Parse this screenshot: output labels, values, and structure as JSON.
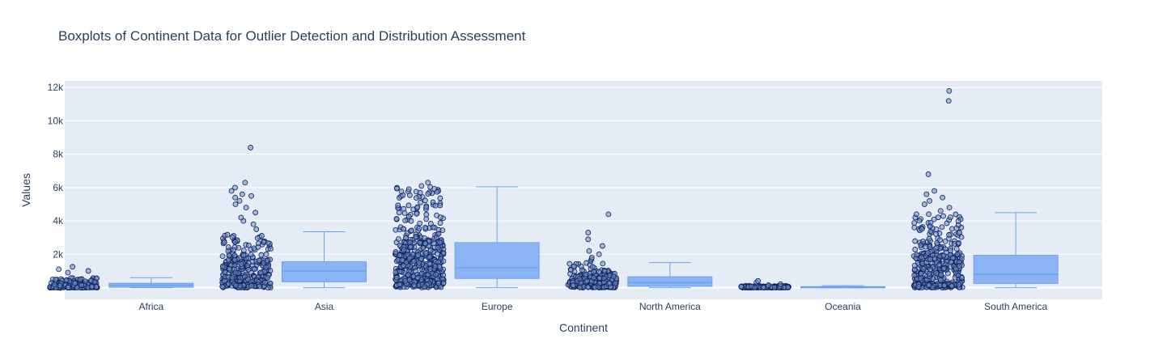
{
  "chart_data": {
    "type": "box",
    "title": "Boxplots of Continent Data for Outlier Detection and Distribution Assessment",
    "xlabel": "Continent",
    "ylabel": "Values",
    "categories": [
      "Africa",
      "Asia",
      "Europe",
      "North America",
      "Oceania",
      "South America"
    ],
    "ylim": [
      -700,
      12400
    ],
    "yticks": [
      0,
      2000,
      4000,
      6000,
      8000,
      10000,
      12000
    ],
    "ytick_labels": [
      "0",
      "2k",
      "4k",
      "6k",
      "8k",
      "10k",
      "12k"
    ],
    "grid": true,
    "boxes": [
      {
        "category": "Africa",
        "min": 0,
        "q1": 20,
        "median": 150,
        "q3": 260,
        "max": 600
      },
      {
        "category": "Asia",
        "min": 0,
        "q1": 350,
        "median": 1000,
        "q3": 1550,
        "max": 3350
      },
      {
        "category": "Europe",
        "min": 0,
        "q1": 550,
        "median": 1200,
        "q3": 2700,
        "max": 6050
      },
      {
        "category": "North America",
        "min": 0,
        "q1": 80,
        "median": 300,
        "q3": 650,
        "max": 1500
      },
      {
        "category": "Oceania",
        "min": 0,
        "q1": 10,
        "median": 30,
        "q3": 60,
        "max": 120
      },
      {
        "category": "South America",
        "min": 0,
        "q1": 250,
        "median": 800,
        "q3": 1950,
        "max": 4500
      }
    ],
    "outliers": [
      {
        "category": "Africa",
        "values": [
          900,
          1000,
          1100,
          1250
        ]
      },
      {
        "category": "Asia",
        "values": [
          3500,
          3800,
          4000,
          4200,
          4500,
          4800,
          5000,
          5200,
          5400,
          5500,
          5600,
          5800,
          6000,
          6300,
          8400
        ]
      },
      {
        "category": "Europe",
        "values": [
          6100,
          6300
        ]
      },
      {
        "category": "North America",
        "values": [
          1600,
          1700,
          1800,
          2000,
          2200,
          2500,
          2900,
          3300,
          4400
        ]
      },
      {
        "category": "Oceania",
        "values": [
          150,
          200,
          300,
          400
        ]
      },
      {
        "category": "South America",
        "values": [
          4600,
          4800,
          5000,
          5200,
          5400,
          5600,
          5800,
          6800,
          11200,
          11800
        ]
      }
    ],
    "colors": {
      "box_fill": "#8bb4f4",
      "box_line": "#6fa0f0",
      "point_fill": "#6f8fc6",
      "point_line": "#0e1f5a",
      "plot_bg": "#e5ecf6",
      "grid": "#ffffff",
      "text": "#2a3f5f"
    }
  }
}
